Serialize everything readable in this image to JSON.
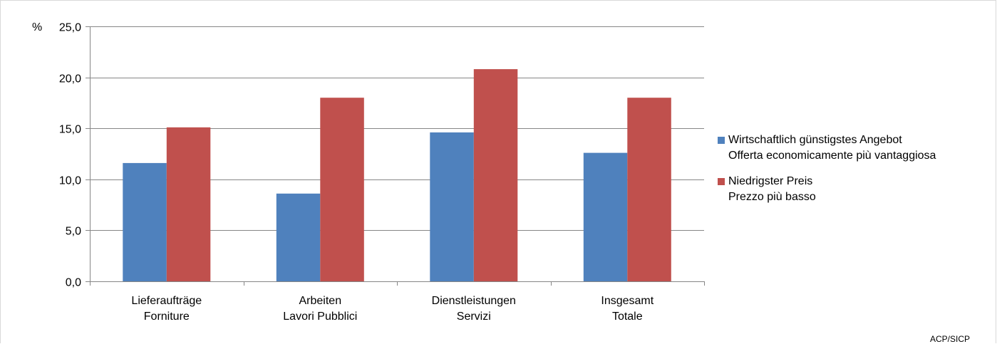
{
  "chart_data": {
    "type": "bar",
    "unit_label": "%",
    "categories": [
      [
        "Lieferaufträge",
        "Forniture"
      ],
      [
        "Arbeiten",
        "Lavori Pubblici"
      ],
      [
        "Dienstleistungen",
        "Servizi"
      ],
      [
        "Insgesamt",
        "Totale"
      ]
    ],
    "series": [
      {
        "name": [
          "Wirtschaftlich günstigstes Angebot",
          "Offerta economicamente più vantaggiosa"
        ],
        "color": "#4f81bd",
        "values": [
          11.6,
          8.6,
          14.6,
          12.6
        ]
      },
      {
        "name": [
          "Niedrigster Preis",
          "Prezzo più basso"
        ],
        "color": "#c0504d",
        "values": [
          15.1,
          18.0,
          20.8,
          18.0
        ]
      }
    ],
    "ylim": [
      0,
      25
    ],
    "yticks": [
      "0,0",
      "5,0",
      "10,0",
      "15,0",
      "20,0",
      "25,0"
    ],
    "grid": true,
    "legend_position": "right"
  },
  "source_label": "ACP/SICP"
}
